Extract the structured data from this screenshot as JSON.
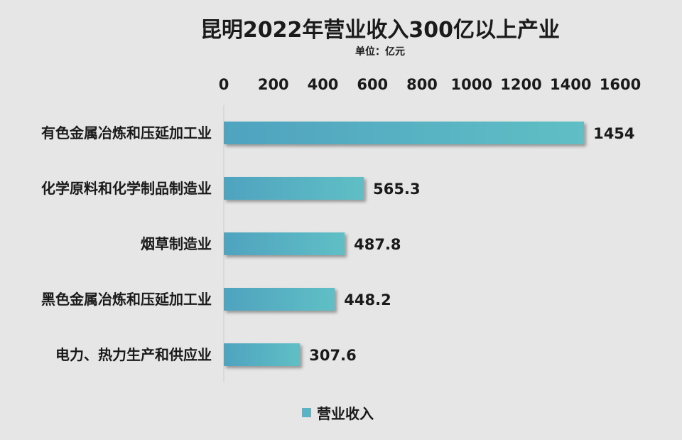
{
  "chart_data": {
    "type": "bar",
    "orientation": "horizontal",
    "title": "昆明2022年营业收入300亿以上产业",
    "subtitle": "单位：亿元",
    "categories": [
      "有色金属冶炼和压延加工业",
      "化学原料和化学制品制造业",
      "烟草制造业",
      "黑色金属冶炼和压延加工业",
      "电力、热力生产和供应业"
    ],
    "series": [
      {
        "name": "营业收入",
        "values": [
          1454,
          565.3,
          487.8,
          448.2,
          307.6
        ]
      }
    ],
    "value_labels": [
      "1454",
      "565.3",
      "487.8",
      "448.2",
      "307.6"
    ],
    "xlim": [
      0,
      1600
    ],
    "ticks": [
      "0",
      "200",
      "400",
      "600",
      "800",
      "1000",
      "1200",
      "1400",
      "1600"
    ],
    "grid": false,
    "legend_position": "bottom",
    "bar_color": "#5ab4c5",
    "background_color": "#e6e6e6"
  }
}
